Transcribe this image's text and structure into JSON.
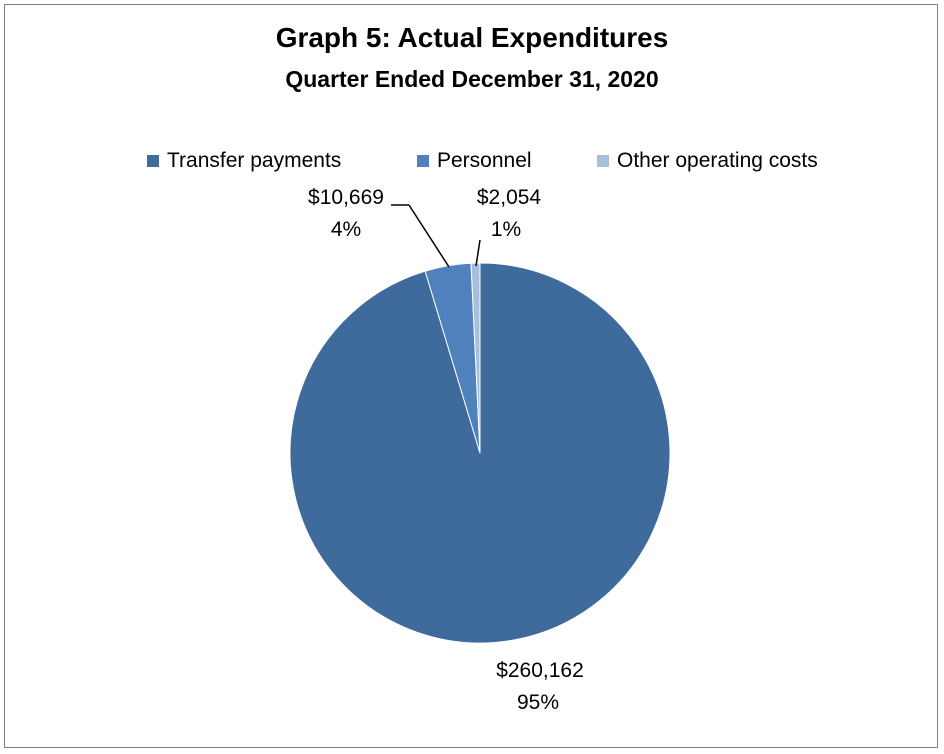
{
  "chart_data": {
    "type": "pie",
    "title": "Graph 5: Actual Expenditures",
    "subtitle": "Quarter Ended December 31, 2020",
    "legend_position": "top",
    "slices": [
      {
        "name": "Transfer payments",
        "value": 260162,
        "value_label": "$260,162",
        "percent_label": "95%",
        "color": "#3f6a9c"
      },
      {
        "name": "Personnel",
        "value": 10669,
        "value_label": "$10,669",
        "percent_label": "4%",
        "color": "#4f81bd"
      },
      {
        "name": "Other operating costs",
        "value": 2054,
        "value_label": "$2,054",
        "percent_label": "1%",
        "color": "#a8bfdc"
      }
    ]
  }
}
